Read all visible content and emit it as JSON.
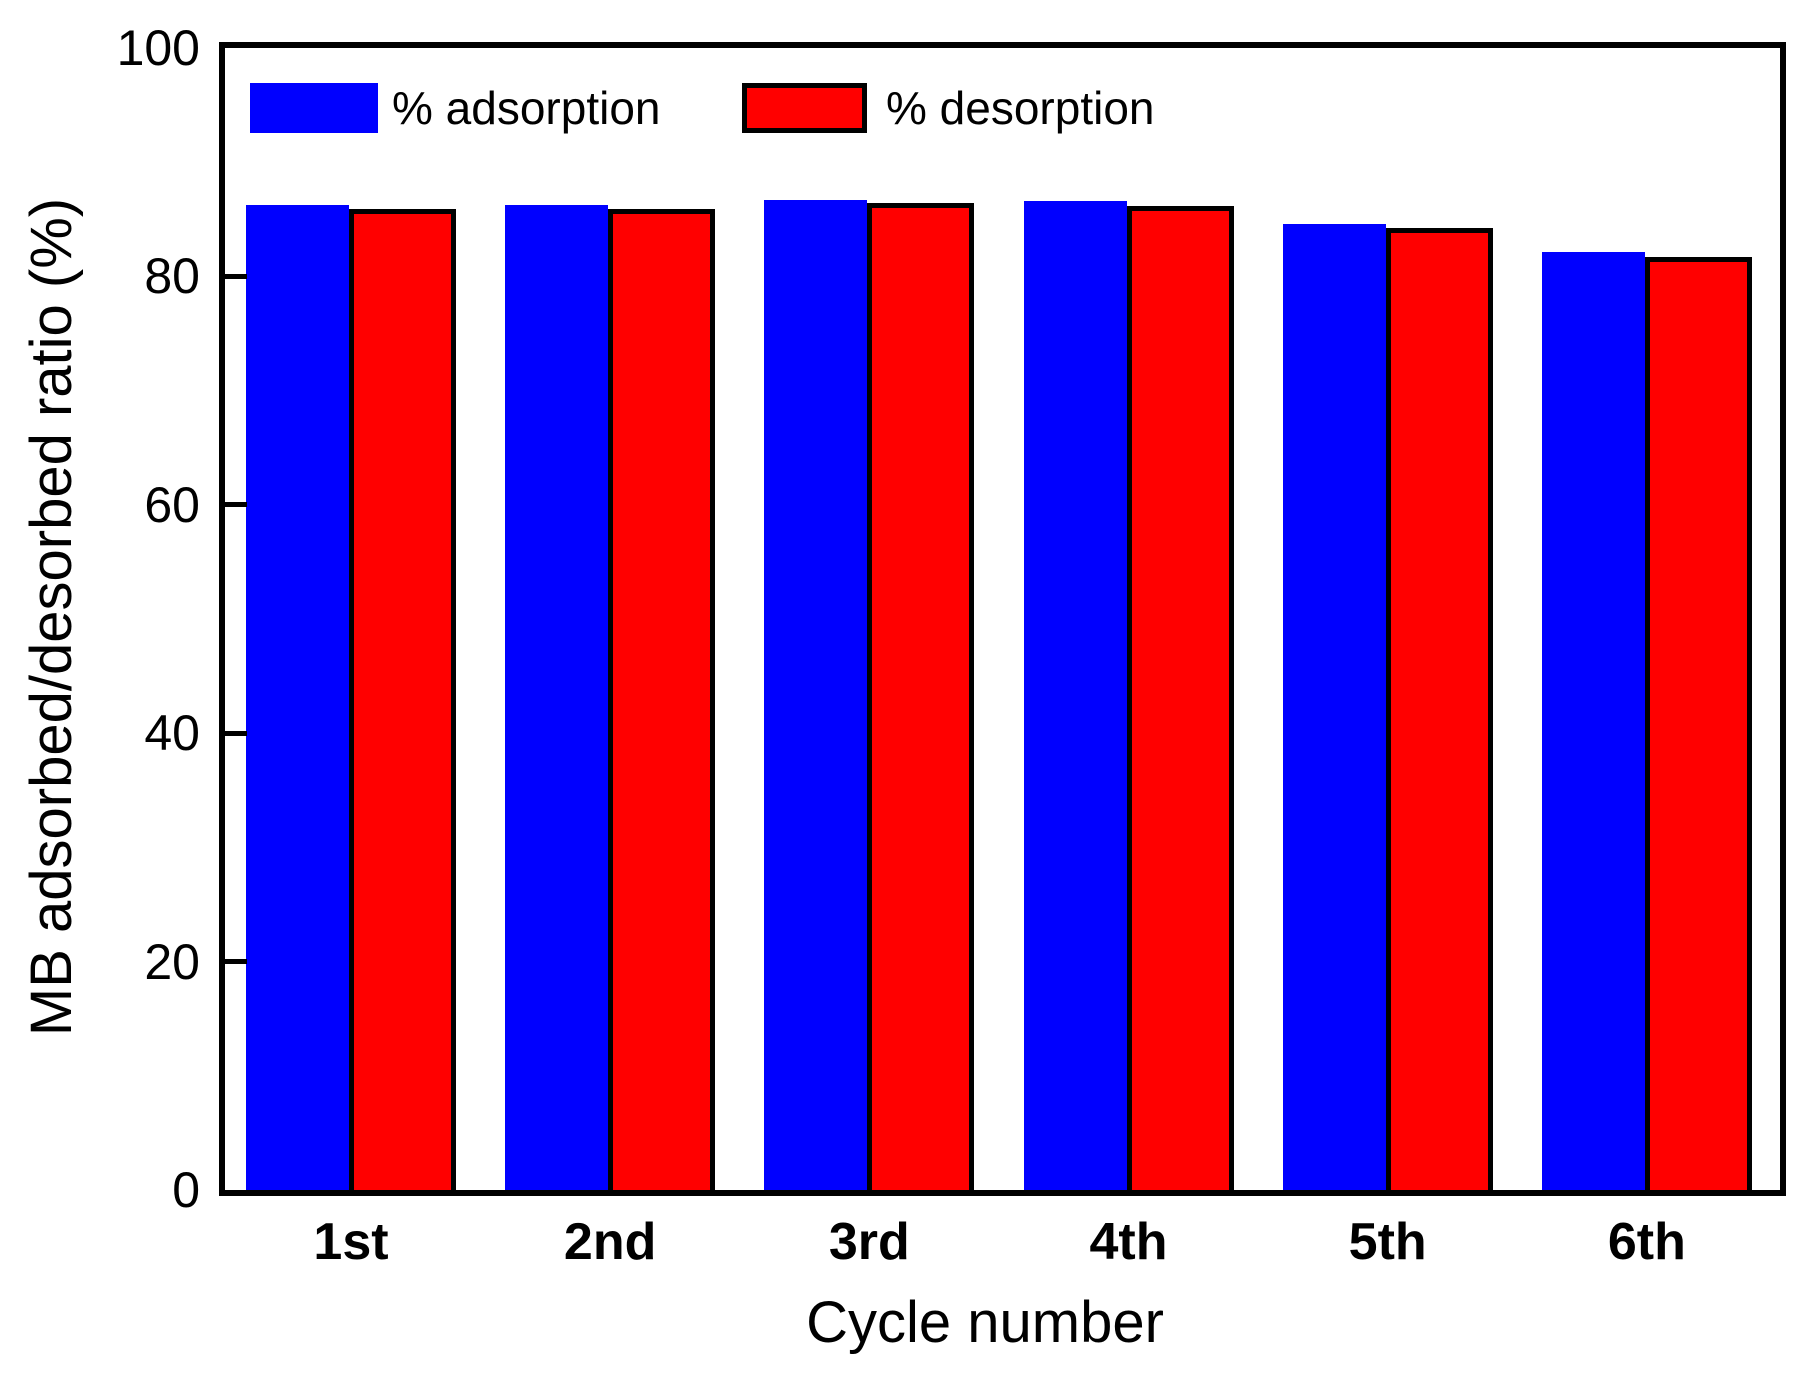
{
  "figure": {
    "background": "#ffffff",
    "text_color": "#000000"
  },
  "chart_data": {
    "type": "bar",
    "title": "",
    "xlabel": "Cycle number",
    "ylabel": "MB adsorbed/desorbed ratio (%)",
    "categories": [
      "1st",
      "2nd",
      "3rd",
      "4th",
      "5th",
      "6th"
    ],
    "series": [
      {
        "name": "% adsorption",
        "color": "#0000ff",
        "edge_color": "#0000ff",
        "values": [
          86.3,
          86.3,
          86.7,
          86.6,
          84.6,
          82.1
        ]
      },
      {
        "name": "% desorption",
        "color": "#ff0000",
        "edge_color": "#000000",
        "values": [
          85.9,
          85.9,
          86.4,
          86.2,
          84.2,
          81.7
        ]
      }
    ],
    "ylim": [
      0,
      100
    ],
    "yticks": [
      0,
      20,
      40,
      60,
      80,
      100
    ],
    "grid": false,
    "legend_position": "top-left-inside",
    "axis_color": "#000000",
    "tick_direction": "in"
  }
}
